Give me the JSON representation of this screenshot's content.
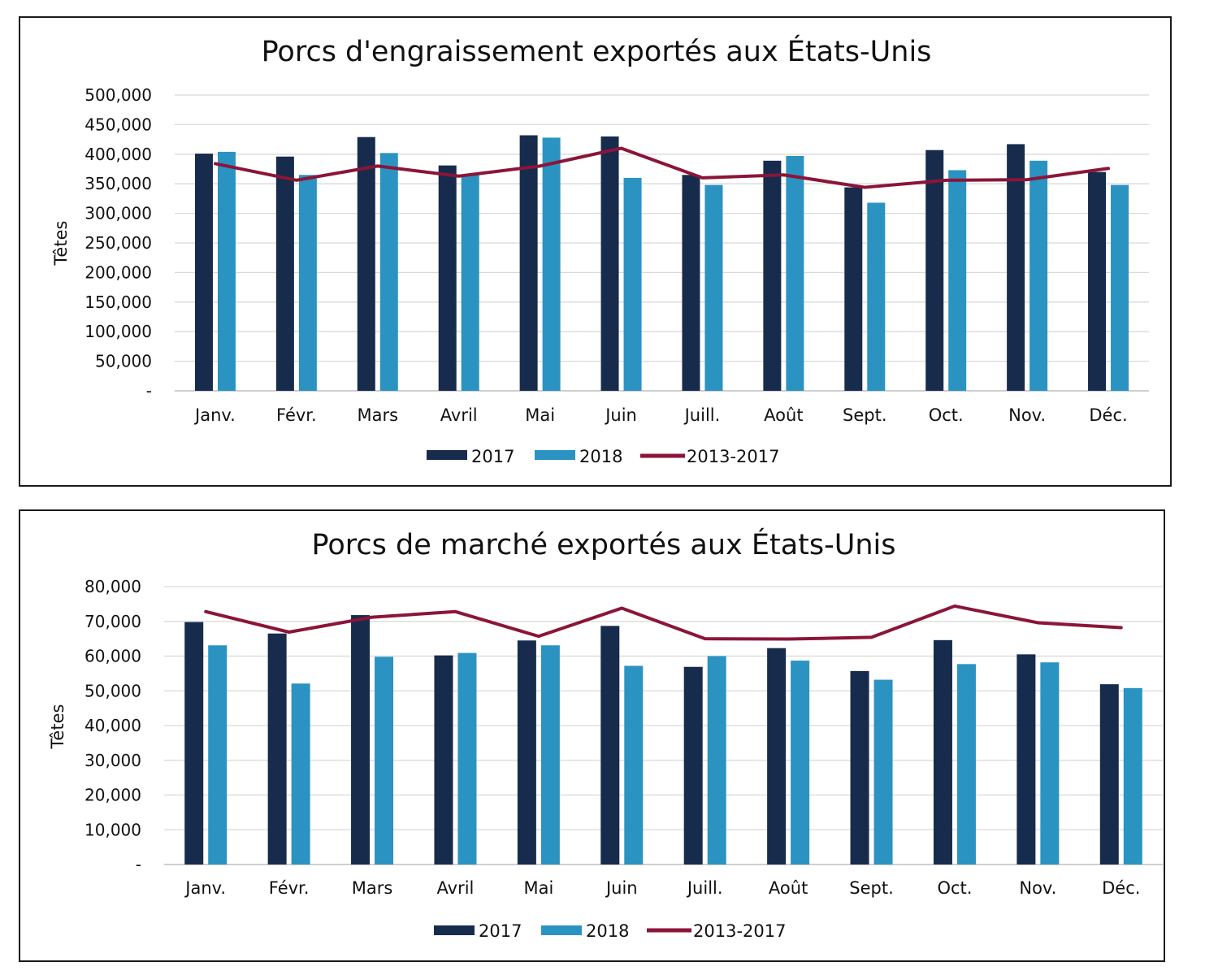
{
  "colors": {
    "s2017": "#172b4d",
    "s2018": "#2b93c1",
    "avg": "#8b1538"
  },
  "chart_data": [
    {
      "type": "bar",
      "title": "Porcs d'engraissement exportés aux États-Unis",
      "ylabel": "Têtes",
      "xlabel": "",
      "ylim": [
        0,
        500000
      ],
      "grid": true,
      "legend_position": "bottom",
      "yticks": [
        "-",
        "50,000",
        "100,000",
        "150,000",
        "200,000",
        "250,000",
        "300,000",
        "350,000",
        "400,000",
        "450,000",
        "500,000"
      ],
      "categories": [
        "Janv.",
        "Févr.",
        "Mars",
        "Avril",
        "Mai",
        "Juin",
        "Juill.",
        "Août",
        "Sept.",
        "Oct.",
        "Nov.",
        "Déc."
      ],
      "series": [
        {
          "name": "2017",
          "type": "bar",
          "values": [
            401000,
            396000,
            429000,
            381000,
            432000,
            430000,
            365000,
            389000,
            344000,
            407000,
            417000,
            370000
          ]
        },
        {
          "name": "2018",
          "type": "bar",
          "values": [
            404000,
            365000,
            402000,
            365000,
            428000,
            360000,
            348000,
            397000,
            318000,
            373000,
            389000,
            348000
          ]
        },
        {
          "name": "2013-2017",
          "type": "line",
          "values": [
            384000,
            356000,
            380000,
            363000,
            380000,
            410000,
            360000,
            365000,
            344000,
            356000,
            357000,
            376000
          ]
        }
      ]
    },
    {
      "type": "bar",
      "title": "Porcs de marché exportés aux États-Unis",
      "ylabel": "Têtes",
      "xlabel": "",
      "ylim": [
        0,
        80000
      ],
      "grid": true,
      "legend_position": "bottom",
      "yticks": [
        "-",
        "10,000",
        "20,000",
        "30,000",
        "40,000",
        "50,000",
        "60,000",
        "70,000",
        "80,000"
      ],
      "categories": [
        "Janv.",
        "Févr.",
        "Mars",
        "Avril",
        "Mai",
        "Juin",
        "Juill.",
        "Août",
        "Sept.",
        "Oct.",
        "Nov.",
        "Déc."
      ],
      "series": [
        {
          "name": "2017",
          "type": "bar",
          "values": [
            69800,
            66500,
            71800,
            60200,
            64500,
            68700,
            56900,
            62300,
            55700,
            64600,
            60500,
            51900
          ]
        },
        {
          "name": "2018",
          "type": "bar",
          "values": [
            63100,
            52100,
            59800,
            60900,
            63100,
            57200,
            60000,
            58700,
            53200,
            57700,
            58200,
            50800
          ]
        },
        {
          "name": "2013-2017",
          "type": "line",
          "values": [
            72800,
            66900,
            71200,
            72800,
            65700,
            73800,
            65000,
            64900,
            65400,
            74400,
            69600,
            68200
          ]
        }
      ]
    }
  ]
}
